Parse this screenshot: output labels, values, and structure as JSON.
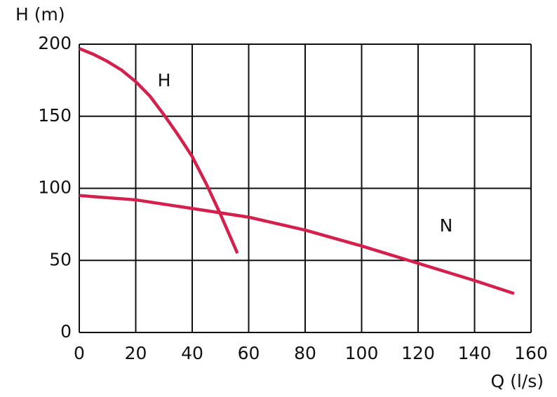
{
  "chart_data": {
    "type": "line",
    "y_label": "H (m)",
    "x_label": "Q (l/s)",
    "xlim": [
      0,
      160
    ],
    "xticks": [
      0,
      20,
      40,
      60,
      80,
      100,
      120,
      140,
      160
    ],
    "ylim": [
      0,
      200
    ],
    "yticks": [
      0,
      50,
      100,
      150,
      200
    ],
    "grid": true,
    "series": [
      {
        "name": "H",
        "color": "#d4204c",
        "x": [
          0,
          5,
          10,
          15,
          20,
          25,
          30,
          35,
          40,
          45,
          50,
          56
        ],
        "values": [
          197,
          193,
          188,
          182,
          174,
          164,
          151,
          137,
          122,
          103,
          82,
          55
        ]
      },
      {
        "name": "N",
        "color": "#d4204c",
        "x": [
          0,
          20,
          40,
          60,
          80,
          100,
          120,
          140,
          154
        ],
        "values": [
          95,
          92,
          86,
          80,
          71,
          60,
          48,
          36,
          27
        ]
      }
    ]
  }
}
